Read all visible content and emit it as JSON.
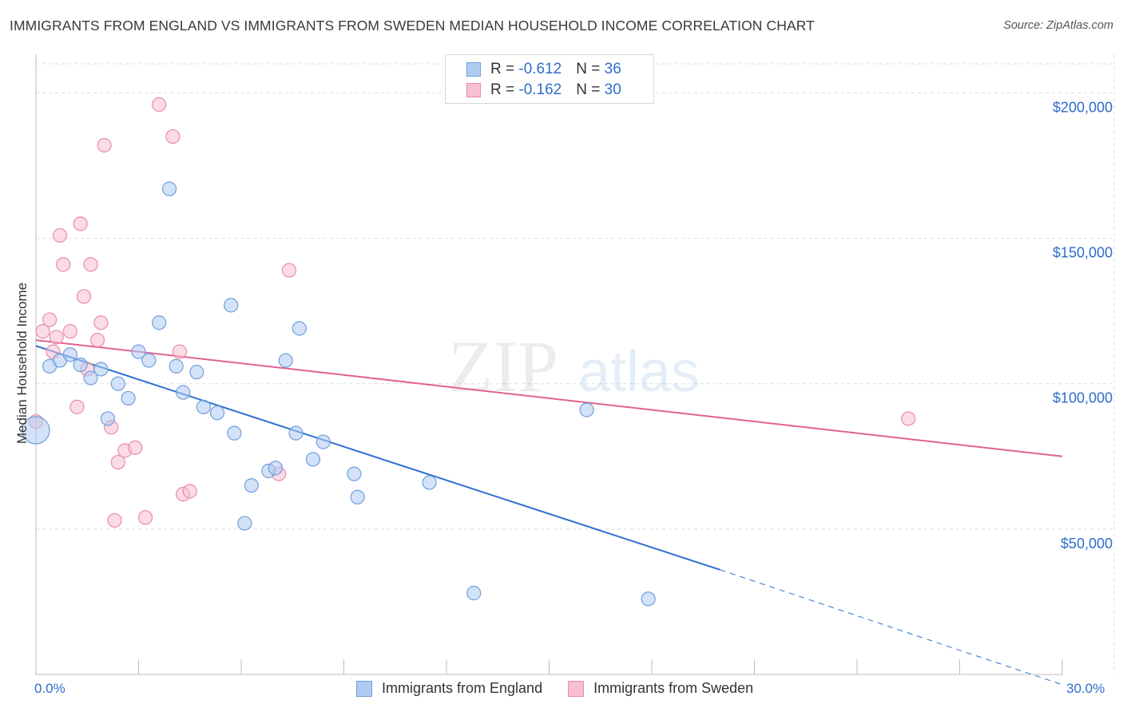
{
  "title": "IMMIGRANTS FROM ENGLAND VS IMMIGRANTS FROM SWEDEN MEDIAN HOUSEHOLD INCOME CORRELATION CHART",
  "source": "Source: ZipAtlas.com",
  "legend": {
    "rows": [
      {
        "r_label": "R = ",
        "r_value": "-0.612",
        "n_label": "N = ",
        "n_value": "36"
      },
      {
        "r_label": "R = ",
        "r_value": "-0.162",
        "n_label": "N = ",
        "n_value": "30"
      }
    ]
  },
  "colors": {
    "england_fill": "#aecbf2",
    "england_stroke": "#6f9fdc",
    "england_line": "#2b6fd0",
    "sweden_fill": "#f7bfd0",
    "sweden_stroke": "#e98bab",
    "sweden_line": "#e0628f",
    "axis_text": "#2f6ecb",
    "grid": "#dcdcdc"
  },
  "chart_data": {
    "type": "scatter",
    "xlabel": "",
    "ylabel": "Median Household Income",
    "xlim": [
      0,
      30
    ],
    "ylim": [
      0,
      210000
    ],
    "x_tick_labels": [
      "0.0%",
      "30.0%"
    ],
    "y_tick_labels": [
      "$50,000",
      "$100,000",
      "$150,000",
      "$200,000"
    ],
    "y_ticks": [
      50000,
      100000,
      150000,
      200000
    ],
    "grid": true,
    "legend_position": "top-center",
    "series": [
      {
        "name": "Immigrants from England",
        "points": [
          [
            0.0,
            84000
          ],
          [
            0.4,
            106000
          ],
          [
            0.7,
            108000
          ],
          [
            1.0,
            110000
          ],
          [
            1.3,
            106500
          ],
          [
            1.6,
            102000
          ],
          [
            1.9,
            105000
          ],
          [
            2.1,
            88000
          ],
          [
            2.4,
            100000
          ],
          [
            2.7,
            95000
          ],
          [
            3.0,
            111000
          ],
          [
            3.3,
            108000
          ],
          [
            3.6,
            121000
          ],
          [
            3.9,
            167000
          ],
          [
            4.1,
            106000
          ],
          [
            4.3,
            97000
          ],
          [
            4.7,
            104000
          ],
          [
            4.9,
            92000
          ],
          [
            5.3,
            90000
          ],
          [
            5.7,
            127000
          ],
          [
            5.8,
            83000
          ],
          [
            6.1,
            52000
          ],
          [
            6.3,
            65000
          ],
          [
            6.8,
            70000
          ],
          [
            7.0,
            71000
          ],
          [
            7.3,
            108000
          ],
          [
            7.6,
            83000
          ],
          [
            7.7,
            119000
          ],
          [
            8.1,
            74000
          ],
          [
            8.4,
            80000
          ],
          [
            9.3,
            69000
          ],
          [
            9.4,
            61000
          ],
          [
            11.5,
            66000
          ],
          [
            12.8,
            28000
          ],
          [
            16.1,
            91000
          ],
          [
            17.9,
            26000
          ]
        ],
        "trend": {
          "x": [
            0,
            20
          ],
          "y": [
            113000,
            36000
          ],
          "dashed_to": [
            30,
            -3500
          ]
        }
      },
      {
        "name": "Immigrants from Sweden",
        "points": [
          [
            0.0,
            87000
          ],
          [
            0.2,
            118000
          ],
          [
            0.4,
            122000
          ],
          [
            0.5,
            111000
          ],
          [
            0.6,
            116000
          ],
          [
            0.7,
            151000
          ],
          [
            0.8,
            141000
          ],
          [
            1.0,
            118000
          ],
          [
            1.2,
            92000
          ],
          [
            1.3,
            155000
          ],
          [
            1.4,
            130000
          ],
          [
            1.5,
            105000
          ],
          [
            1.6,
            141000
          ],
          [
            1.8,
            115000
          ],
          [
            1.9,
            121000
          ],
          [
            2.0,
            182000
          ],
          [
            2.2,
            85000
          ],
          [
            2.3,
            53000
          ],
          [
            2.4,
            73000
          ],
          [
            2.6,
            77000
          ],
          [
            2.9,
            78000
          ],
          [
            3.2,
            54000
          ],
          [
            3.6,
            196000
          ],
          [
            4.0,
            185000
          ],
          [
            4.2,
            111000
          ],
          [
            4.3,
            62000
          ],
          [
            4.5,
            63000
          ],
          [
            7.1,
            69000
          ],
          [
            7.4,
            139000
          ],
          [
            25.5,
            88000
          ]
        ],
        "trend": {
          "x": [
            0,
            30
          ],
          "y": [
            115000,
            75000
          ]
        }
      }
    ]
  }
}
